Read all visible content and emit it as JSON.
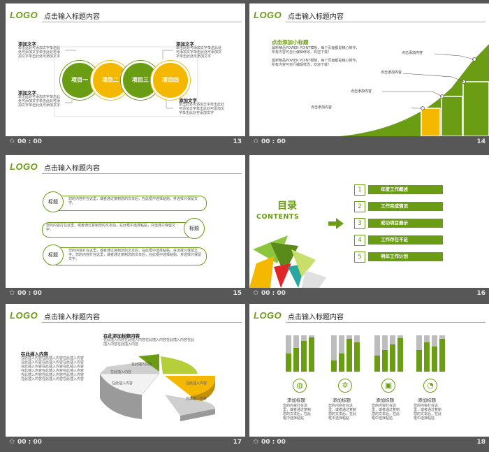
{
  "logo": "LOGO",
  "slide_title": "点击输入标题内容",
  "footer_time": "00 : 00",
  "slides": [
    {
      "number": "13",
      "headings": [
        "添加文字",
        "添加文字",
        "添加文字",
        "添加文字"
      ],
      "body": "单击此处可添加文字单击此处可添加文字单击此处可添加文字单击此处可添加文字",
      "circles": [
        "项目一",
        "项目二",
        "项目三",
        "项目四"
      ]
    },
    {
      "number": "14",
      "subtitle": "点击添加小标题",
      "para1": "最新精品POWER POINT模板，每个页面都是精心制作，所有内容可自行编辑修改，欢迎下载！",
      "para2": "最新精品POWER POINT模板，每个页面都是精心制作，所有内容可自行编辑修改，欢迎下载！",
      "labels": [
        "点击添加内容",
        "点击添加内容",
        "点击添加内容",
        "点击添加内容"
      ]
    },
    {
      "number": "15",
      "items": [
        {
          "label": "标题",
          "text": "您的内容打在这里，或者通过复制您的文本后，在此框中选择粘贴，并选择只保留文字。"
        },
        {
          "label": "标题",
          "text": "您的内容打在这里，或者通过复制您的文本后，在此框中选择粘贴，并选择只保留文字。"
        },
        {
          "label": "标题",
          "text": "您的内容打在这里，或者通过复制您的文本后，在此框中选择粘贴，并选择只保留文字。您的内容打在这里，或者通过复制您的文本后，在此框中选择粘贴，并选择只保留文字。"
        }
      ]
    },
    {
      "number": "16",
      "heading": "目录",
      "subheading": "CONTENTS",
      "items": [
        {
          "n": "1",
          "label": "年度工作概述"
        },
        {
          "n": "2",
          "label": "工作完成情况"
        },
        {
          "n": "3",
          "label": "成功项目展示"
        },
        {
          "n": "4",
          "label": "工作存在不足"
        },
        {
          "n": "5",
          "label": "明年工作计划"
        }
      ]
    },
    {
      "number": "17",
      "chart_heading": "在此添加标题内容",
      "chart_sub": "在此插入内容在此插入内容在此插入内容在此插入内容在此插入内容在此插入内容",
      "left_heading": "在此插入内容",
      "left_text": "在此插入内容在此插入内容在此插入内容在此插入内容在此插入内容在此插入内容在此插入内容在此插入内容在此插入内容在此插入内容在此插入内容在此插入内容在此插入内容在此插入内容在此插入内容在此插入内容在此插入内容在此插入内容",
      "slice_labels": [
        "在此插入内容",
        "在此插入内容",
        "在此插入内容",
        "在此插入内容",
        "在此插入内容"
      ]
    },
    {
      "number": "18",
      "groups": [
        {
          "label": "添加标题",
          "text": "您的内容打在这里，或者通过复制您的文本后，在此框中选择粘贴",
          "bars": [
            0.5,
            0.65,
            0.85,
            0.95
          ]
        },
        {
          "label": "添加标题",
          "text": "您的内容打在这里，或者通过复制您的文本后，在此框中选择粘贴",
          "bars": [
            0.3,
            0.5,
            0.9,
            0.8
          ]
        },
        {
          "label": "添加标题",
          "text": "您的内容打在这里，或者通过复制您的文本后，在此框中选择粘贴",
          "bars": [
            0.45,
            0.6,
            0.75,
            0.92
          ]
        },
        {
          "label": "添加标题",
          "text": "您的内容打在这里，或者通过复制您的文本后，在此框中选择粘贴",
          "bars": [
            0.6,
            0.8,
            0.7,
            0.9
          ]
        }
      ],
      "icons": [
        "globe-icon",
        "gears-icon",
        "money-icon",
        "chart-pie-icon"
      ]
    }
  ],
  "colors": {
    "green": "#6a9d13",
    "yellow": "#f5b800",
    "gray": "#bdbdbd"
  }
}
